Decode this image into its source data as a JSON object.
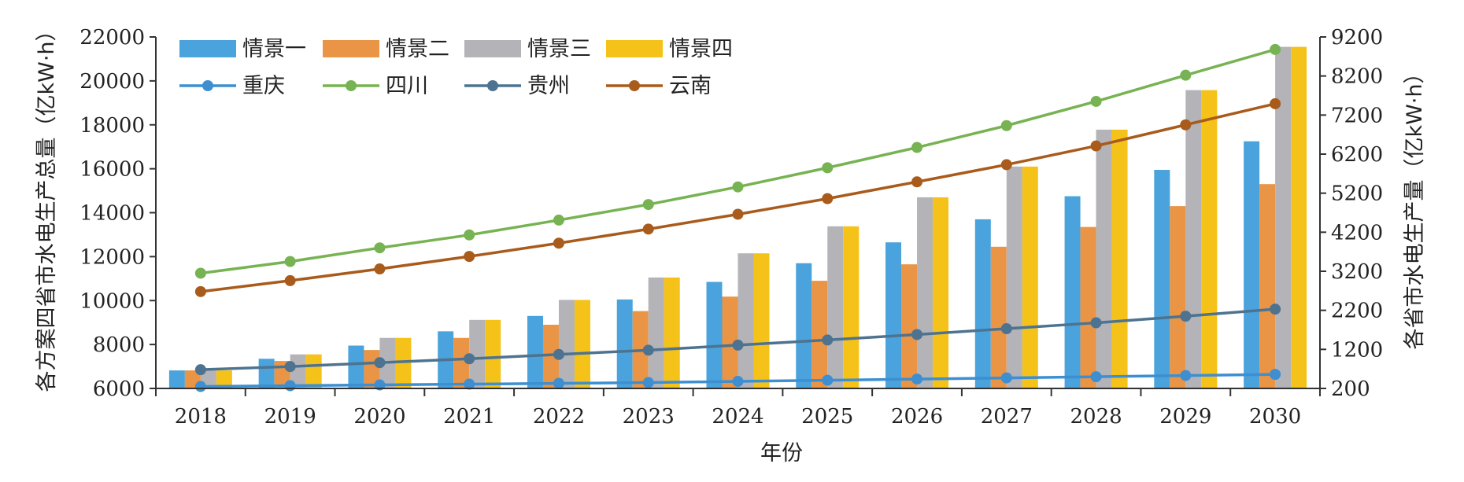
{
  "chart_data": {
    "type": "bar",
    "categories": [
      "2018",
      "2019",
      "2020",
      "2021",
      "2022",
      "2023",
      "2024",
      "2025",
      "2026",
      "2027",
      "2028",
      "2029",
      "2030"
    ],
    "xlabel": "年份",
    "ylabel_left": "各方案四省市水电生产总量（亿kW·h）",
    "ylabel_right": "各省市水电生产量（亿kW·h）",
    "ylim_left": [
      6000,
      22000
    ],
    "yticks_left": [
      "6000",
      "8000",
      "10000",
      "12000",
      "14000",
      "16000",
      "18000",
      "20000",
      "22000"
    ],
    "ylim_right": [
      200,
      9200
    ],
    "yticks_right": [
      "200",
      "1200",
      "2200",
      "3200",
      "4200",
      "5200",
      "6200",
      "7200",
      "8200",
      "9200"
    ],
    "grid": false,
    "legend_position": "top-left",
    "bar_series": [
      {
        "name": "情景一",
        "color": "#4aa3dc",
        "values": [
          6820,
          7350,
          7950,
          8600,
          9300,
          10050,
          10850,
          11700,
          12650,
          13700,
          14750,
          15950,
          17250
        ]
      },
      {
        "name": "情景二",
        "color": "#ea9446",
        "values": [
          6820,
          7250,
          7750,
          8300,
          8900,
          9520,
          10180,
          10900,
          11650,
          12450,
          13350,
          14300,
          15300
        ]
      },
      {
        "name": "情景三",
        "color": "#b3b3b8",
        "values": [
          6820,
          7550,
          8300,
          9120,
          10030,
          11050,
          12150,
          13380,
          14700,
          16100,
          17780,
          19580,
          21550
        ]
      },
      {
        "name": "情景四",
        "color": "#f5c21a",
        "values": [
          6820,
          7550,
          8300,
          9120,
          10030,
          11050,
          12150,
          13380,
          14700,
          16100,
          17780,
          19580,
          21550
        ]
      }
    ],
    "line_series": [
      {
        "name": "重庆",
        "color": "#3d8fd1",
        "values": [
          250,
          270,
          290,
          310,
          330,
          350,
          380,
          410,
          440,
          470,
          500,
          530,
          560
        ]
      },
      {
        "name": "四川",
        "color": "#77b352",
        "values": [
          3150,
          3450,
          3800,
          4130,
          4510,
          4910,
          5360,
          5850,
          6370,
          6930,
          7550,
          8220,
          8880
        ]
      },
      {
        "name": "贵州",
        "color": "#4d7390",
        "values": [
          680,
          760,
          860,
          960,
          1070,
          1180,
          1310,
          1440,
          1580,
          1730,
          1880,
          2050,
          2230
        ]
      },
      {
        "name": "云南",
        "color": "#a95b1c",
        "values": [
          2680,
          2960,
          3260,
          3580,
          3920,
          4280,
          4660,
          5060,
          5490,
          5930,
          6410,
          6950,
          7490
        ]
      }
    ]
  }
}
